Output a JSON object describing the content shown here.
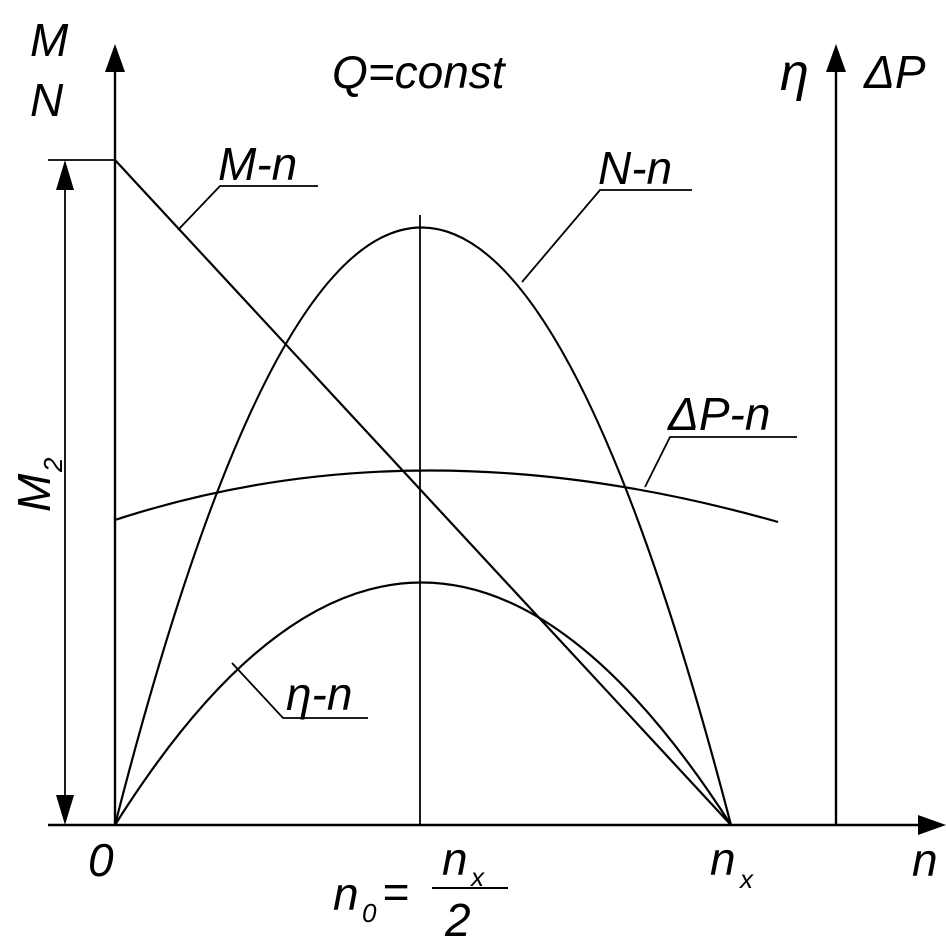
{
  "title": "Q=const",
  "axes": {
    "left_y_label_top": "M",
    "left_y_label_bottom": "N",
    "right_y_label_eta": "η",
    "right_y_label_dp": "ΔP",
    "x_label": "n",
    "origin_label": "0",
    "nx_label_main": "n",
    "nx_label_sub": "x",
    "m2_label_main": "M",
    "m2_label_sub": "2"
  },
  "mid_formula": {
    "lhs_main": "n",
    "lhs_sub": "0",
    "equals": "=",
    "num_main": "n",
    "num_sub": "x",
    "den": "2"
  },
  "curves": {
    "m_label": "M-n",
    "n_label": "N-n",
    "dp_label": "ΔP-n",
    "eta_label": "η-n"
  },
  "colors": {
    "ink": "#000000",
    "background": "#ffffff"
  }
}
